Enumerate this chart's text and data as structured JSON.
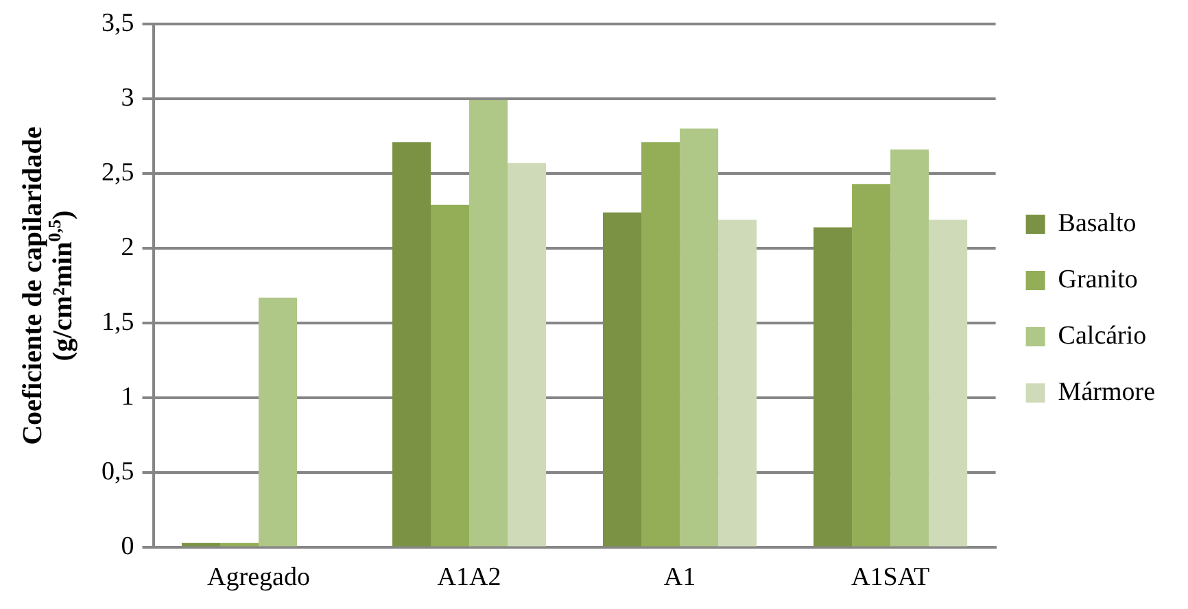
{
  "chart_data": {
    "type": "bar",
    "ylabel": "Coeficiente de capilaridade (g/cm²min$^{0,5}$)",
    "categories": [
      "Agregado",
      "A1A2",
      "A1",
      "A1SAT"
    ],
    "series": [
      {
        "name": "Basalto",
        "color": "#7b9244",
        "values": [
          0.03,
          2.71,
          2.24,
          2.14
        ]
      },
      {
        "name": "Granito",
        "color": "#93ae56",
        "values": [
          0.03,
          2.29,
          2.71,
          2.43
        ]
      },
      {
        "name": "Calcário",
        "color": "#afc787",
        "values": [
          1.67,
          2.99,
          2.8,
          2.66
        ]
      },
      {
        "name": "Mármore",
        "color": "#cfdbb8",
        "values": [
          null,
          2.57,
          2.19,
          2.19
        ]
      }
    ],
    "ylim": [
      0,
      3.5
    ],
    "yticks": [
      0,
      {
        "value": 0.5,
        "label": "0,5"
      },
      1,
      {
        "value": 1.5,
        "label": "1,5"
      },
      2,
      {
        "value": 2.5,
        "label": "2,5"
      },
      3,
      {
        "value": 3.5,
        "label": "3,5"
      }
    ],
    "grid": "y",
    "legend": "right"
  }
}
